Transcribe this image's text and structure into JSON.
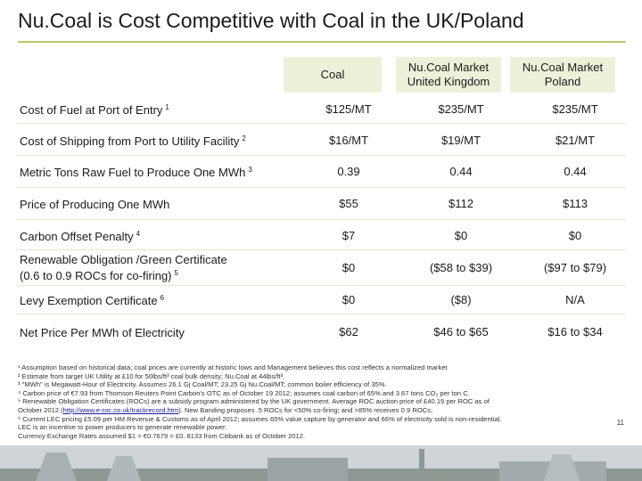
{
  "title": "Nu.Coal is Cost Competitive with Coal in the UK/Poland",
  "headers": {
    "coal": [
      "Coal"
    ],
    "uk": [
      "Nu.Coal Market",
      "United Kingdom"
    ],
    "poland": [
      "Nu.Coal Market",
      "Poland"
    ]
  },
  "rows": [
    {
      "label": "Cost of Fuel at Port of Entry",
      "sup": "1",
      "coal": "$125/MT",
      "uk": "$235/MT",
      "poland": "$235/MT"
    },
    {
      "label": "Cost of Shipping from Port to Utility Facility",
      "sup": "2",
      "coal": "$16/MT",
      "uk": "$19/MT",
      "poland": "$21/MT"
    },
    {
      "label": "Metric Tons Raw Fuel to Produce One MWh",
      "sup": "3",
      "coal": "0.39",
      "uk": "0.44",
      "poland": "0.44"
    },
    {
      "label": "Price of Producing One MWh",
      "sup": "",
      "coal": "$55",
      "uk": "$112",
      "poland": "$113"
    },
    {
      "label": "Carbon Offset Penalty",
      "sup": "4",
      "coal": "$7",
      "uk": "$0",
      "poland": "$0"
    },
    {
      "label": "Renewable Obligation /Green Certificate",
      "label2": "(0.6 to 0.9 ROCs for co-firing)",
      "sup": "5",
      "coal": "$0",
      "uk": "($58 to $39)",
      "poland": "($97 to $79)"
    },
    {
      "label": "Levy Exemption Certificate",
      "sup": "6",
      "coal": "$0",
      "uk": "($8)",
      "poland": "N/A"
    },
    {
      "label": "Net Price Per MWh of Electricity",
      "sup": "",
      "coal": "$62",
      "uk": "$46 to $65",
      "poland": "$16 to $34"
    }
  ],
  "footnotes": {
    "n1": "¹ Assumption based on historical data; coal prices are currently at historic lows and Management believes this cost reflects a normalized market",
    "n2": "² Estimate from target UK Utility at £10 for 50lbs/ft³ coal bulk density; Nu.Coal at 44lbs/ft³.",
    "n3": "³ \"MWh\" is Megawatt-Hour of Electricity. Assumes 26.1 Gj Coal/MT; 23.25 Gj Nu.Coal/MT; common boiler efficiency of 35%.",
    "n4": "⁴ Carbon price of €7.93 from Thomson Reuters Point Carbon's OTC as of October 19 2012; assumes coal carbon of 65% and 3.67 tons CO₂ per ton C.",
    "n5a": "⁵ Renewable Obligation Certificates (ROCs) are a subsidy program administered by the UK government. Average ROC auction price of £40.19 per ROC as of",
    "n5b_pre": "October 2012 (",
    "n5b_link": "http://www.e-roc.co.uk/trackrecord.htm",
    "n5b_post": "). New Banding proposes .5 ROCs for <50% co-firing; and >85% receives 0.9 ROCs;",
    "n6a": "⁶ Current LEC pricing £5.09 per HM Revenue & Customs as of April 2012; assumes 65% value capture by generator and 66% of electricity sold is non-residential.",
    "n6b": "LEC is an incentive to power producers to generate renewable power.",
    "fx": "Currency Exchange Rates assumed $1 = €0.7679 = £0. 8133 from Citibank as of October 2012."
  },
  "page_number": "11"
}
